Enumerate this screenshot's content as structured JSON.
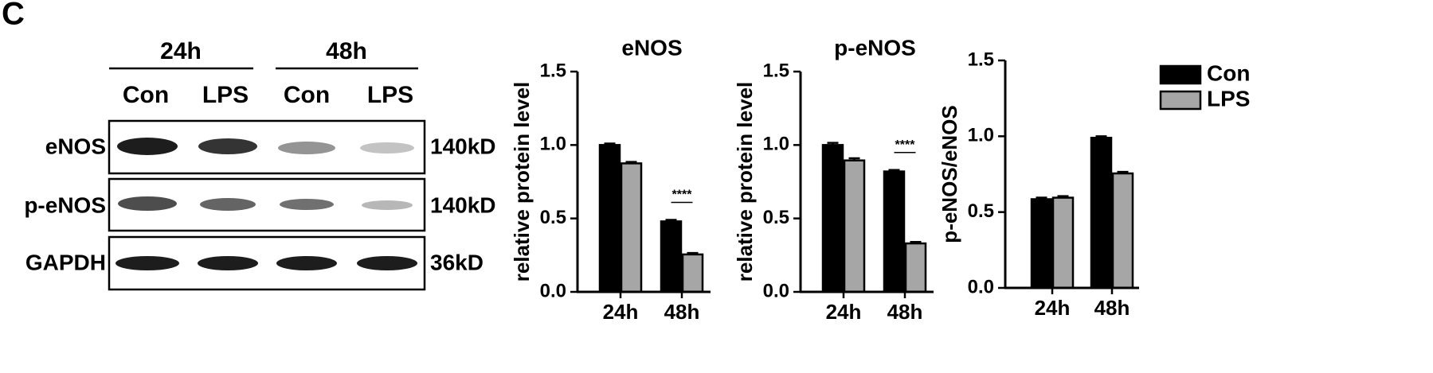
{
  "panel_label": "C",
  "blot": {
    "timepoints": [
      "24h",
      "48h"
    ],
    "lanes": [
      "Con",
      "LPS",
      "Con",
      "LPS"
    ],
    "rows": [
      {
        "label": "eNOS",
        "size": "140kD"
      },
      {
        "label": "p-eNOS",
        "size": "140kD"
      },
      {
        "label": "GAPDH",
        "size": "36kD"
      }
    ]
  },
  "chart_data": [
    {
      "type": "bar",
      "title": "eNOS",
      "ylabel": "relative protein level",
      "categories": [
        "24h",
        "48h"
      ],
      "series": [
        {
          "name": "Con",
          "color": "#000000",
          "values": [
            1.0,
            0.48
          ],
          "errors": [
            0.01,
            0.01
          ]
        },
        {
          "name": "LPS",
          "color": "#a6a6a6",
          "values": [
            0.875,
            0.255
          ],
          "errors": [
            0.01,
            0.01
          ]
        }
      ],
      "ylim": [
        0,
        1.5
      ],
      "yticks": [
        {
          "value": 0,
          "label": "0.0"
        },
        {
          "value": 0.5,
          "label": "0.5"
        },
        {
          "value": 1,
          "label": "1.0"
        },
        {
          "value": 1.5,
          "label": "1.5"
        }
      ],
      "annotations": [
        {
          "text": "****",
          "x": "48h"
        }
      ]
    },
    {
      "type": "bar",
      "title": "p-eNOS",
      "ylabel": "relative protein level",
      "categories": [
        "24h",
        "48h"
      ],
      "series": [
        {
          "name": "Con",
          "color": "#000000",
          "values": [
            1.0,
            0.82
          ],
          "errors": [
            0.015,
            0.01
          ]
        },
        {
          "name": "LPS",
          "color": "#a6a6a6",
          "values": [
            0.895,
            0.33
          ],
          "errors": [
            0.015,
            0.01
          ]
        }
      ],
      "ylim": [
        0,
        1.5
      ],
      "yticks": [
        {
          "value": 0,
          "label": "0.0"
        },
        {
          "value": 0.5,
          "label": "0.5"
        },
        {
          "value": 1,
          "label": "1.0"
        },
        {
          "value": 1.5,
          "label": "1.5"
        }
      ],
      "annotations": [
        {
          "text": "****",
          "x": "48h"
        }
      ]
    },
    {
      "type": "bar",
      "ylabel": "p-eNOS/eNOS",
      "categories": [
        "24h",
        "48h"
      ],
      "legend": "right",
      "series": [
        {
          "name": "Con",
          "color": "#000000",
          "values": [
            0.585,
            0.99
          ],
          "errors": [
            0.01,
            0.01
          ]
        },
        {
          "name": "LPS",
          "color": "#a6a6a6",
          "values": [
            0.595,
            0.755
          ],
          "errors": [
            0.01,
            0.01
          ]
        }
      ],
      "ylim": [
        0,
        1.5
      ],
      "yticks": [
        {
          "value": 0,
          "label": "0.0"
        },
        {
          "value": 0.5,
          "label": "0.5"
        },
        {
          "value": 1,
          "label": "1.0"
        },
        {
          "value": 1.5,
          "label": "1.5"
        }
      ]
    }
  ]
}
